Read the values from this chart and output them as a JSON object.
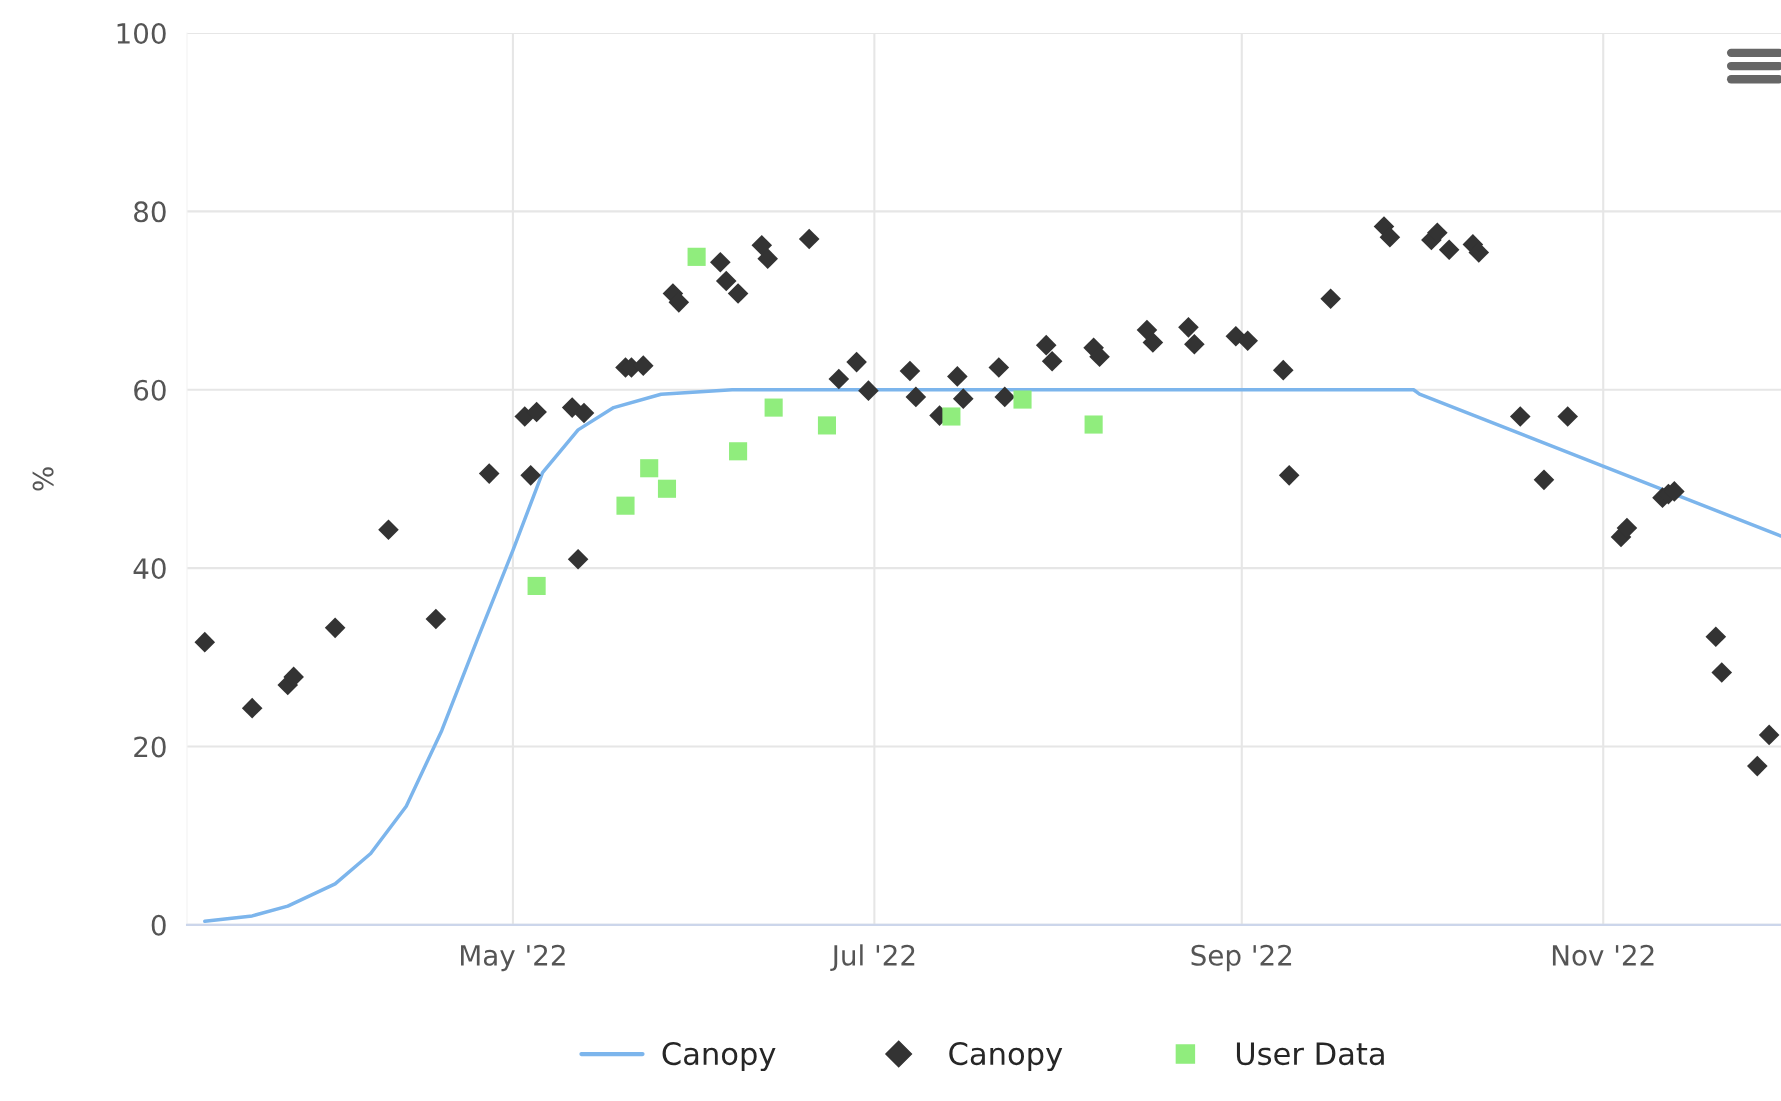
{
  "chart_data": {
    "type": "scatter",
    "ylabel": "%",
    "xlim": [
      "2022-03-07",
      "2022-12-01"
    ],
    "ylim": [
      0,
      100
    ],
    "yticks": [
      0,
      20,
      40,
      60,
      80,
      100
    ],
    "xticks": [
      {
        "value": "2022-05-01",
        "label": "May '22"
      },
      {
        "value": "2022-07-01",
        "label": "Jul '22"
      },
      {
        "value": "2022-09-01",
        "label": "Sep '22"
      },
      {
        "value": "2022-11-01",
        "label": "Nov '22"
      }
    ],
    "grid": true,
    "legend": "bottom",
    "series": [
      {
        "name": "Canopy",
        "type": "line",
        "marker": "none",
        "color": "#7cb5ec",
        "x": [
          "2022-03-10",
          "2022-03-18",
          "2022-03-24",
          "2022-04-01",
          "2022-04-07",
          "2022-04-13",
          "2022-04-19",
          "2022-04-25",
          "2022-05-01",
          "2022-05-06",
          "2022-05-12",
          "2022-05-18",
          "2022-05-26",
          "2022-06-07",
          "2022-06-20",
          "2022-09-01",
          "2022-09-30",
          "2022-10-01",
          "2022-12-01"
        ],
        "values": [
          0.4,
          1.0,
          2.1,
          4.6,
          8.0,
          13.3,
          21.8,
          32,
          42,
          50.7,
          55.5,
          58,
          59.5,
          60,
          60,
          60,
          60,
          59.5,
          43.6
        ]
      },
      {
        "name": "Canopy",
        "marker": "diamond",
        "color": "#333333",
        "x": [
          "2022-03-10",
          "2022-03-18",
          "2022-03-24",
          "2022-03-25",
          "2022-04-01",
          "2022-04-10",
          "2022-04-18",
          "2022-04-27",
          "2022-05-03",
          "2022-05-05",
          "2022-05-04",
          "2022-05-12",
          "2022-05-11",
          "2022-05-13",
          "2022-05-20",
          "2022-05-21",
          "2022-05-23",
          "2022-05-28",
          "2022-05-29",
          "2022-06-05",
          "2022-06-06",
          "2022-06-08",
          "2022-06-12",
          "2022-06-13",
          "2022-06-20",
          "2022-06-25",
          "2022-06-28",
          "2022-06-30",
          "2022-07-07",
          "2022-07-08",
          "2022-07-12",
          "2022-07-15",
          "2022-07-16",
          "2022-07-22",
          "2022-07-23",
          "2022-07-30",
          "2022-07-31",
          "2022-08-07",
          "2022-08-08",
          "2022-08-16",
          "2022-08-17",
          "2022-08-23",
          "2022-08-24",
          "2022-08-31",
          "2022-09-02",
          "2022-09-08",
          "2022-09-09",
          "2022-09-16",
          "2022-09-25",
          "2022-09-26",
          "2022-10-03",
          "2022-10-04",
          "2022-10-06",
          "2022-10-10",
          "2022-10-11",
          "2022-10-18",
          "2022-10-22",
          "2022-10-26",
          "2022-11-04",
          "2022-11-05",
          "2022-11-11",
          "2022-11-12",
          "2022-11-13",
          "2022-11-20",
          "2022-11-21",
          "2022-11-27",
          "2022-11-29"
        ],
        "values": [
          31.7,
          24.3,
          26.9,
          27.8,
          33.3,
          44.3,
          34.3,
          50.6,
          57.0,
          57.5,
          50.4,
          41.0,
          58.0,
          57.4,
          62.5,
          62.5,
          62.7,
          70.8,
          69.8,
          74.3,
          72.2,
          70.8,
          76.2,
          74.7,
          76.9,
          61.2,
          63.1,
          59.9,
          62.1,
          59.2,
          57.1,
          61.5,
          59.0,
          62.5,
          59.2,
          65.0,
          63.2,
          64.7,
          63.7,
          66.7,
          65.3,
          67.0,
          65.1,
          66.0,
          65.5,
          62.2,
          50.4,
          70.2,
          78.3,
          77.1,
          76.8,
          77.6,
          75.7,
          76.3,
          75.4,
          57.0,
          49.9,
          57.0,
          43.5,
          44.5,
          47.9,
          48.3,
          48.6,
          32.3,
          28.3,
          17.8,
          21.3
        ]
      },
      {
        "name": "User Data",
        "marker": "square",
        "color": "#90ed7d",
        "x": [
          "2022-05-05",
          "2022-05-20",
          "2022-05-24",
          "2022-05-27",
          "2022-06-01",
          "2022-06-08",
          "2022-06-14",
          "2022-06-23",
          "2022-07-14",
          "2022-07-26",
          "2022-08-07"
        ],
        "values": [
          38.0,
          47.0,
          51.2,
          48.9,
          74.9,
          53.1,
          58.0,
          56.0,
          57.0,
          58.9,
          56.1
        ]
      }
    ]
  }
}
